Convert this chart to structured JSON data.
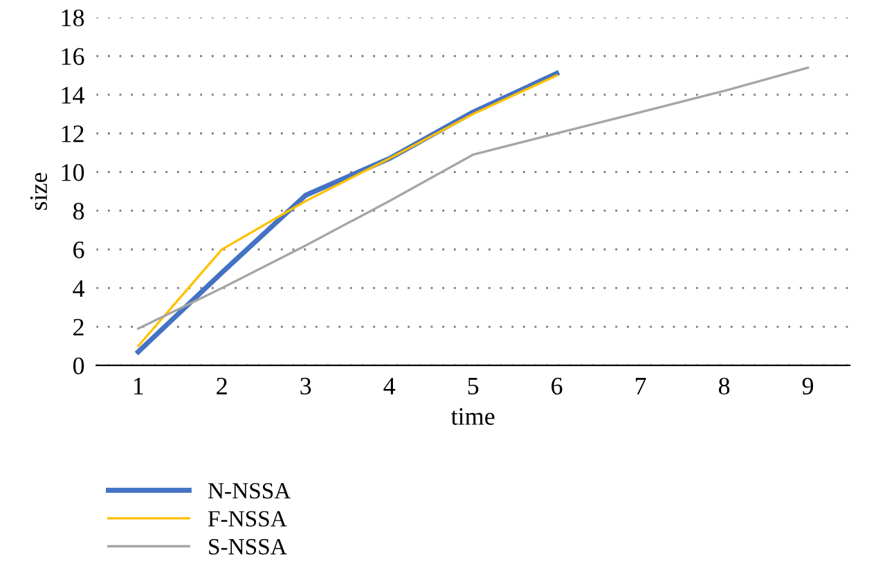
{
  "chart_data": {
    "type": "line",
    "xlabel": "time",
    "ylabel": "size",
    "categories": [
      "1",
      "2",
      "3",
      "4",
      "5",
      "6",
      "7",
      "8",
      "9"
    ],
    "series": [
      {
        "name": "N-NSSA",
        "color": "#4472c4",
        "values": [
          0.7,
          4.8,
          8.8,
          10.7,
          13.1,
          15.1,
          null,
          null,
          null
        ]
      },
      {
        "name": "F-NSSA",
        "color": "#ffc000",
        "values": [
          1.0,
          6.0,
          8.5,
          10.7,
          13.0,
          15.0,
          null,
          null,
          null
        ]
      },
      {
        "name": "S-NSSA",
        "color": "#a5a5a5",
        "values": [
          1.9,
          4.0,
          6.2,
          8.5,
          10.9,
          12.0,
          13.1,
          14.2,
          15.4
        ]
      }
    ],
    "ylim": [
      0,
      18
    ],
    "yticks": [
      0,
      2,
      4,
      6,
      8,
      10,
      12,
      14,
      16,
      18
    ],
    "grid": "y",
    "legend": "bottom left",
    "marker": "none",
    "line_style": "solid"
  }
}
